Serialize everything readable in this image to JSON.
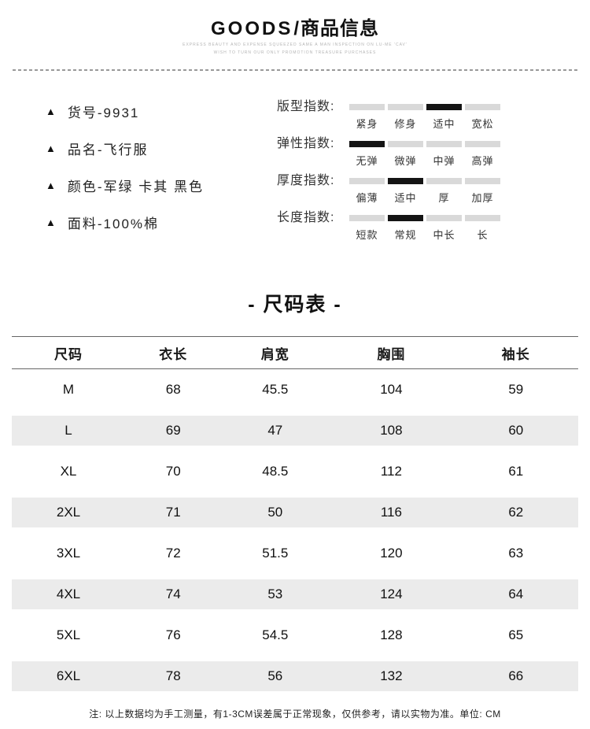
{
  "header": {
    "brand": "GOODS",
    "slash": "/",
    "title_cn": "商品信息",
    "tagline_line1": "EXPRESS BEAUTY AND EXPENSE SQUEEZED SAME A MAN INSPECTION ON LU-ME 'CAV'",
    "tagline_line2": "WISH TO TURN OUR ONLY PROMOTION TREASURE PURCHASES"
  },
  "icons": {
    "bullet": "▲"
  },
  "product_details": {
    "items": [
      "货号-9931",
      "品名-飞行服",
      "颜色-军绿 卡其 黑色",
      "面料-100%棉"
    ]
  },
  "indices": [
    {
      "label": "版型指数:",
      "options": [
        "紧身",
        "修身",
        "适中",
        "宽松"
      ],
      "selected": 2
    },
    {
      "label": "弹性指数:",
      "options": [
        "无弹",
        "微弹",
        "中弹",
        "高弹"
      ],
      "selected": 0
    },
    {
      "label": "厚度指数:",
      "options": [
        "偏薄",
        "适中",
        "厚",
        "加厚"
      ],
      "selected": 1
    },
    {
      "label": "长度指数:",
      "options": [
        "短款",
        "常规",
        "中长",
        "长"
      ],
      "selected": 1
    }
  ],
  "size_table": {
    "title": "- 尺码表 -",
    "columns": [
      "尺码",
      "衣长",
      "肩宽",
      "胸围",
      "袖长"
    ],
    "rows": [
      [
        "M",
        "68",
        "45.5",
        "104",
        "59"
      ],
      [
        "L",
        "69",
        "47",
        "108",
        "60"
      ],
      [
        "XL",
        "70",
        "48.5",
        "112",
        "61"
      ],
      [
        "2XL",
        "71",
        "50",
        "116",
        "62"
      ],
      [
        "3XL",
        "72",
        "51.5",
        "120",
        "63"
      ],
      [
        "4XL",
        "74",
        "53",
        "124",
        "64"
      ],
      [
        "5XL",
        "76",
        "54.5",
        "128",
        "65"
      ],
      [
        "6XL",
        "78",
        "56",
        "132",
        "66"
      ]
    ]
  },
  "note": "注: 以上数据均为手工测量，有1-3CM误差属于正常现象，仅供参考，请以实物为准。单位: CM",
  "colors": {
    "bar_gray": "#d9d9d9",
    "bar_active": "#141414",
    "row_stripe": "#ebebeb"
  }
}
